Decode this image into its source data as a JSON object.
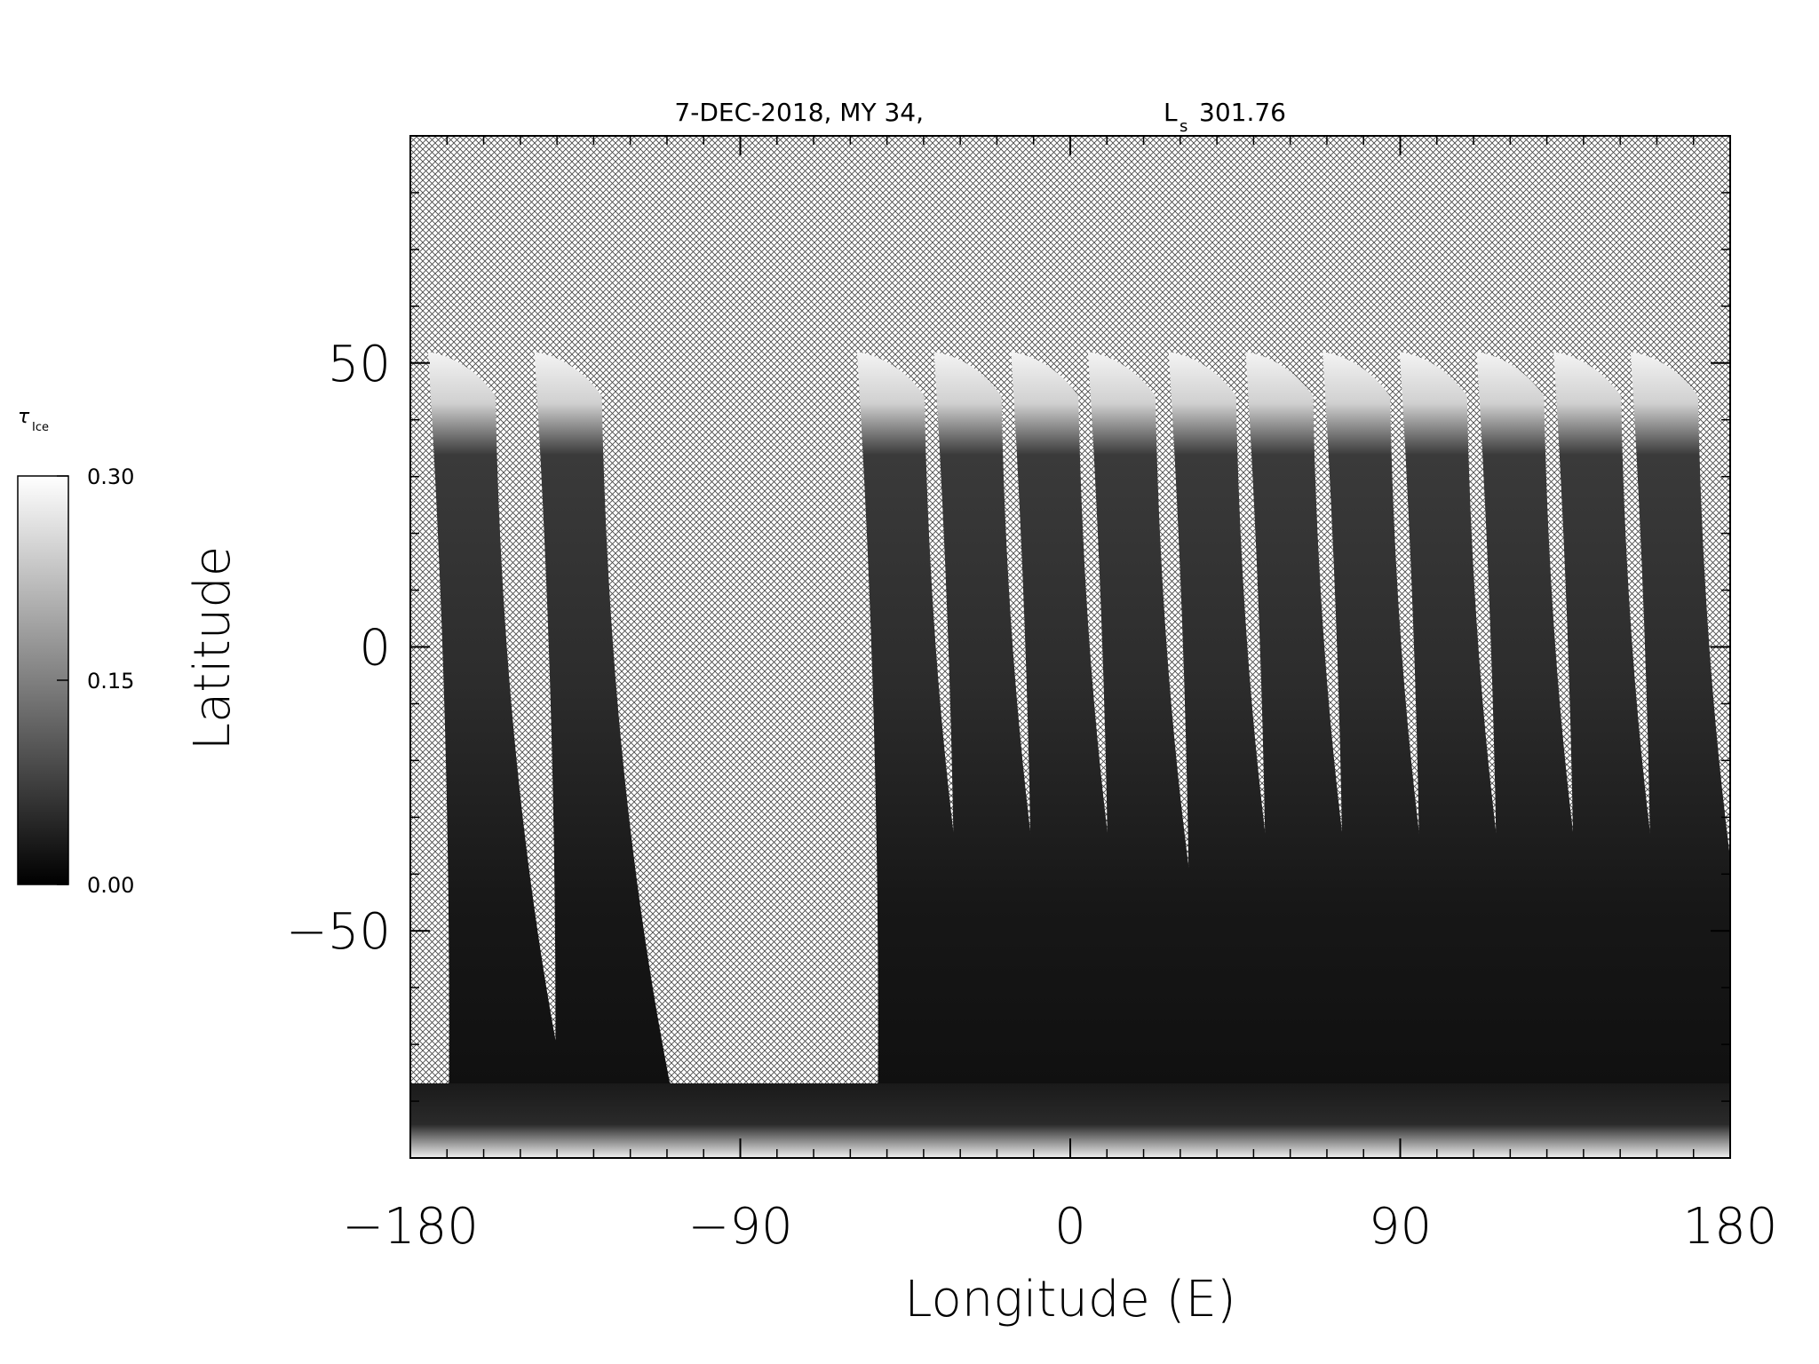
{
  "chart_data": {
    "type": "heatmap",
    "title": "7-DEC-2018, MY 34,",
    "title_ls_symbol": "L",
    "title_ls_sub": "s",
    "title_ls_value": "301.76",
    "xlabel": "Longitude (E)",
    "ylabel": "Latitude",
    "xlim": [
      -180,
      180
    ],
    "ylim": [
      -90,
      90
    ],
    "xticks": [
      -180,
      -90,
      0,
      90,
      180
    ],
    "xtick_labels": [
      "−180",
      "−90",
      "0",
      "90",
      "180"
    ],
    "yticks": [
      -50,
      0,
      50
    ],
    "ytick_labels": [
      "−50",
      "0",
      "50"
    ],
    "no_data_pattern": "cross-hatch",
    "colormap": "grayscale",
    "colorbar": {
      "label": "τ",
      "label_sub": "Ice",
      "min": 0.0,
      "max": 0.3,
      "ticks": [
        0.0,
        0.15,
        0.3
      ],
      "tick_labels": [
        "0.00",
        "0.15",
        "0.30"
      ],
      "min_color": "#000000",
      "max_color": "#ffffff"
    },
    "swaths": [
      {
        "lon_center": -165,
        "north_lat": 52
      },
      {
        "lon_center": -136,
        "north_lat": 52
      },
      {
        "lon_center": -48,
        "north_lat": 52
      },
      {
        "lon_center": -27,
        "north_lat": 52
      },
      {
        "lon_center": -6,
        "north_lat": 52
      },
      {
        "lon_center": 15,
        "north_lat": 52
      },
      {
        "lon_center": 37,
        "north_lat": 52
      },
      {
        "lon_center": 58,
        "north_lat": 52
      },
      {
        "lon_center": 79,
        "north_lat": 52
      },
      {
        "lon_center": 100,
        "north_lat": 52
      },
      {
        "lon_center": 121,
        "north_lat": 52
      },
      {
        "lon_center": 142,
        "north_lat": 52
      },
      {
        "lon_center": 163,
        "north_lat": 52
      }
    ],
    "south_cap": {
      "lat_from": -90,
      "lat_to": -80
    }
  }
}
